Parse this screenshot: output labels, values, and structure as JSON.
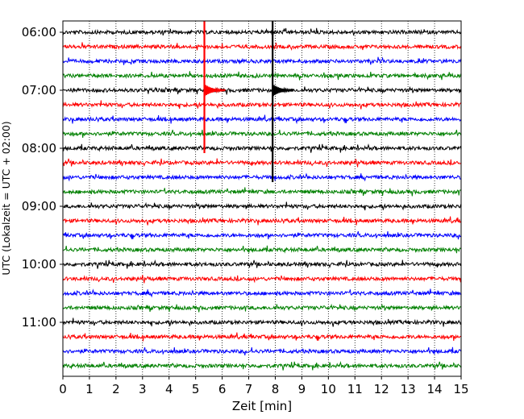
{
  "chart_data": {
    "type": "line",
    "xlabel": "Zeit  [min]",
    "ylabel": "UTC (Lokalzeit = UTC + 02:00)",
    "xlim": [
      0,
      15
    ],
    "x_ticks": [
      0,
      1,
      2,
      3,
      4,
      5,
      6,
      7,
      8,
      9,
      10,
      11,
      12,
      13,
      14,
      15
    ],
    "grid": "vertical dotted",
    "y_tick_labels": [
      "06:00",
      "07:00",
      "08:00",
      "09:00",
      "10:00",
      "11:00"
    ],
    "trace_start_times": [
      "06:00",
      "06:15",
      "06:30",
      "06:45",
      "07:00",
      "07:15",
      "07:30",
      "07:45",
      "08:00",
      "08:15",
      "08:30",
      "08:45",
      "09:00",
      "09:15",
      "09:30",
      "09:45",
      "10:00",
      "10:15",
      "10:30",
      "10:45",
      "11:00",
      "11:15",
      "11:30",
      "11:45"
    ],
    "trace_colors": [
      "#000000",
      "#ff0000",
      "#0000ff",
      "#008000"
    ],
    "events": [
      {
        "time_min": 5.33,
        "color": "#ff0000",
        "start_trace": 0,
        "end_trace": 8
      },
      {
        "time_min": 7.9,
        "color": "#000000",
        "start_trace": 0,
        "end_trace": 10
      }
    ]
  }
}
